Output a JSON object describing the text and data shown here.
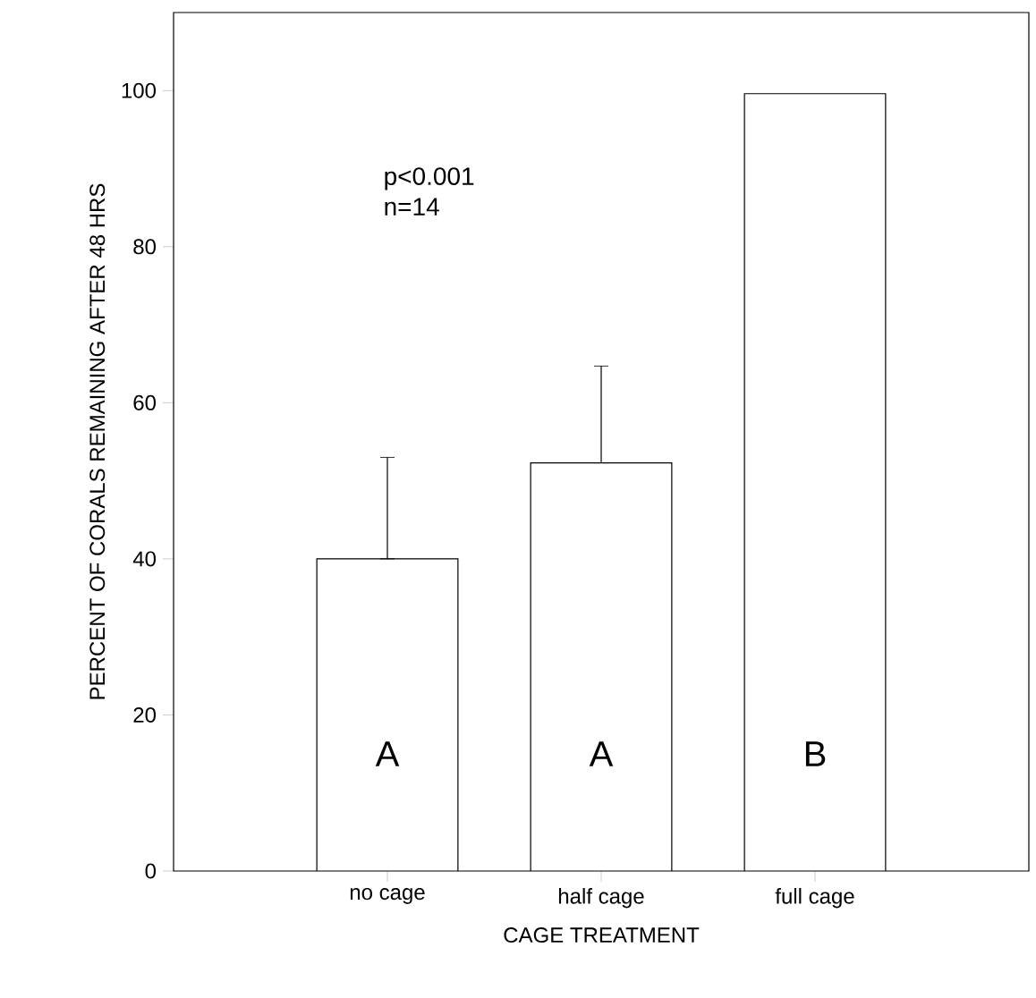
{
  "chart_data": {
    "type": "bar",
    "xlabel": "CAGE TREATMENT",
    "ylabel": "PERCENT OF CORALS REMAINING AFTER 48 HRS",
    "categories": [
      "no cage",
      "half cage",
      "full cage"
    ],
    "values": [
      40,
      52.3,
      99.6
    ],
    "errors": [
      [
        40,
        53
      ],
      [
        52.3,
        64.7
      ],
      null
    ],
    "color": "#ffffff",
    "ylim": [
      0,
      110
    ],
    "yticks": [
      0,
      20,
      40,
      60,
      80,
      100
    ],
    "grid": false,
    "annotations": [
      "p<0.001",
      "n=14",
      "A",
      "A",
      "B"
    ]
  }
}
